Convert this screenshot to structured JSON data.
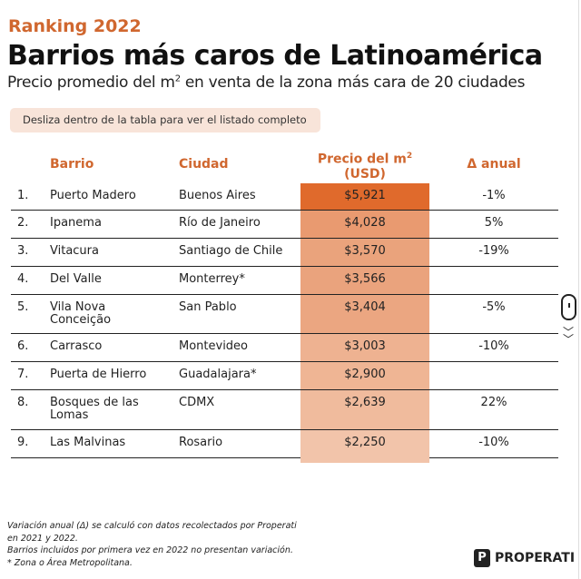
{
  "header": {
    "kicker": "Ranking 2022",
    "title": "Barrios más caros de Latinoamérica",
    "subtitle_pre": "Precio promedio del m",
    "subtitle_sup": "2",
    "subtitle_post": " en venta de la zona más cara de 20 ciudades"
  },
  "hint": "Desliza dentro de la tabla para ver el listado completo",
  "columns": {
    "barrio": "Barrio",
    "ciudad": "Ciudad",
    "precio_line1": "Precio del m",
    "precio_sup": "2",
    "precio_line2": "(USD)",
    "delta": "Δ anual"
  },
  "rows": [
    {
      "n": "1.",
      "barrio": "Puerto Madero",
      "ciudad": "Buenos Aires",
      "precio": "$5,921",
      "delta": "-1%",
      "color": "#e06a2c"
    },
    {
      "n": "2.",
      "barrio": "Ipanema",
      "ciudad": "Río de Janeiro",
      "precio": "$4,028",
      "delta": "5%",
      "color": "#e99a70"
    },
    {
      "n": "3.",
      "barrio": "Vitacura",
      "ciudad": "Santiago de Chile",
      "precio": "$3,570",
      "delta": "-19%",
      "color": "#eaa37c"
    },
    {
      "n": "4.",
      "barrio": "Del Valle",
      "ciudad": "Monterrey*",
      "precio": "$3,566",
      "delta": "",
      "color": "#eaa37d"
    },
    {
      "n": "5.",
      "barrio": "Vila Nova Conceição",
      "ciudad": "San Pablo",
      "precio": "$3,404",
      "delta": "-5%",
      "color": "#eba681"
    },
    {
      "n": "6.",
      "barrio": "Carrasco",
      "ciudad": "Montevideo",
      "precio": "$3,003",
      "delta": "-10%",
      "color": "#eeb291"
    },
    {
      "n": "7.",
      "barrio": "Puerta de Hierro",
      "ciudad": "Guadalajara*",
      "precio": "$2,900",
      "delta": "",
      "color": "#efb594"
    },
    {
      "n": "8.",
      "barrio": "Bosques de las Lomas",
      "ciudad": "CDMX",
      "precio": "$2,639",
      "delta": "22%",
      "color": "#f0bb9d"
    },
    {
      "n": "9.",
      "barrio": "Las Malvinas",
      "ciudad": "Rosario",
      "precio": "$2,250",
      "delta": "-10%",
      "color": "#f2c4aa"
    }
  ],
  "footnotes": [
    "Variación anual  (Δ)  se calculó con datos recolectados por Properati",
    "en 2021 y 2022.",
    "Barrios incluidos por primera vez en 2022 no presentan variación.",
    "* Zona o Área Metropolitana."
  ],
  "logo": {
    "mark": "P",
    "text": "PROPERATI"
  }
}
